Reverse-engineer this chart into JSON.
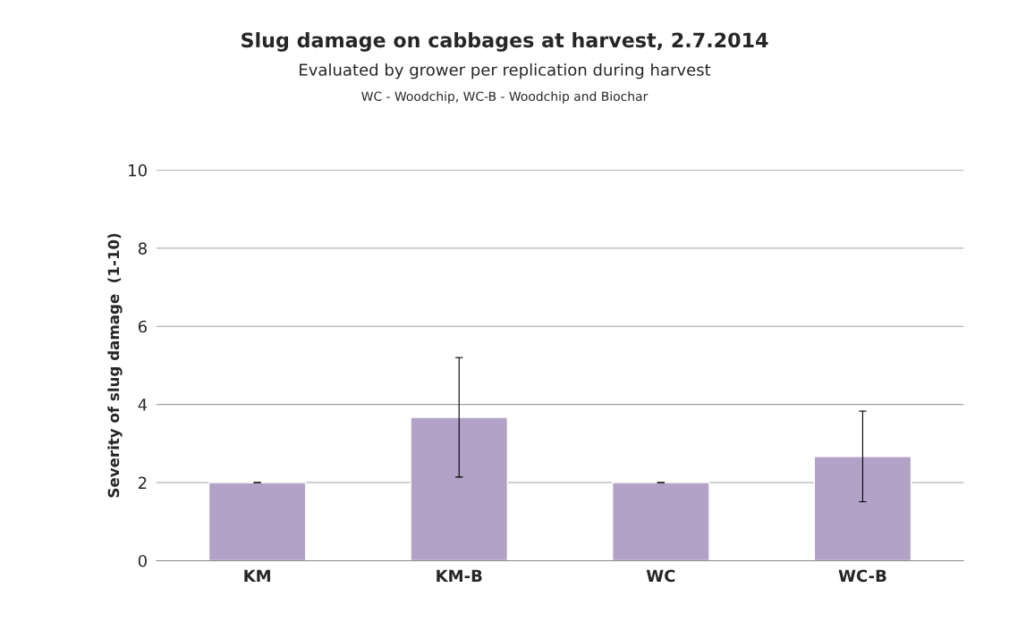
{
  "chart_data": {
    "type": "bar",
    "title": "Slug damage on cabbages at harvest, 2.7.2014",
    "subtitle": "Evaluated by grower per replication during harvest",
    "annotations": [
      "WC - Woodchip, WC-B - Woodchip and Biochar"
    ],
    "ylabel": "Severity of slug damage  (1-10)",
    "categories": [
      "KM",
      "KM-B",
      "WC",
      "WC-B"
    ],
    "values": [
      2,
      3.67,
      2,
      2.67
    ],
    "errors": [
      0,
      1.53,
      0,
      1.16
    ],
    "color": "#b3a2c7",
    "ylim": [
      0,
      10
    ],
    "yticks": [
      0,
      2,
      4,
      6,
      8,
      10
    ],
    "grid": "y",
    "legend": false
  }
}
